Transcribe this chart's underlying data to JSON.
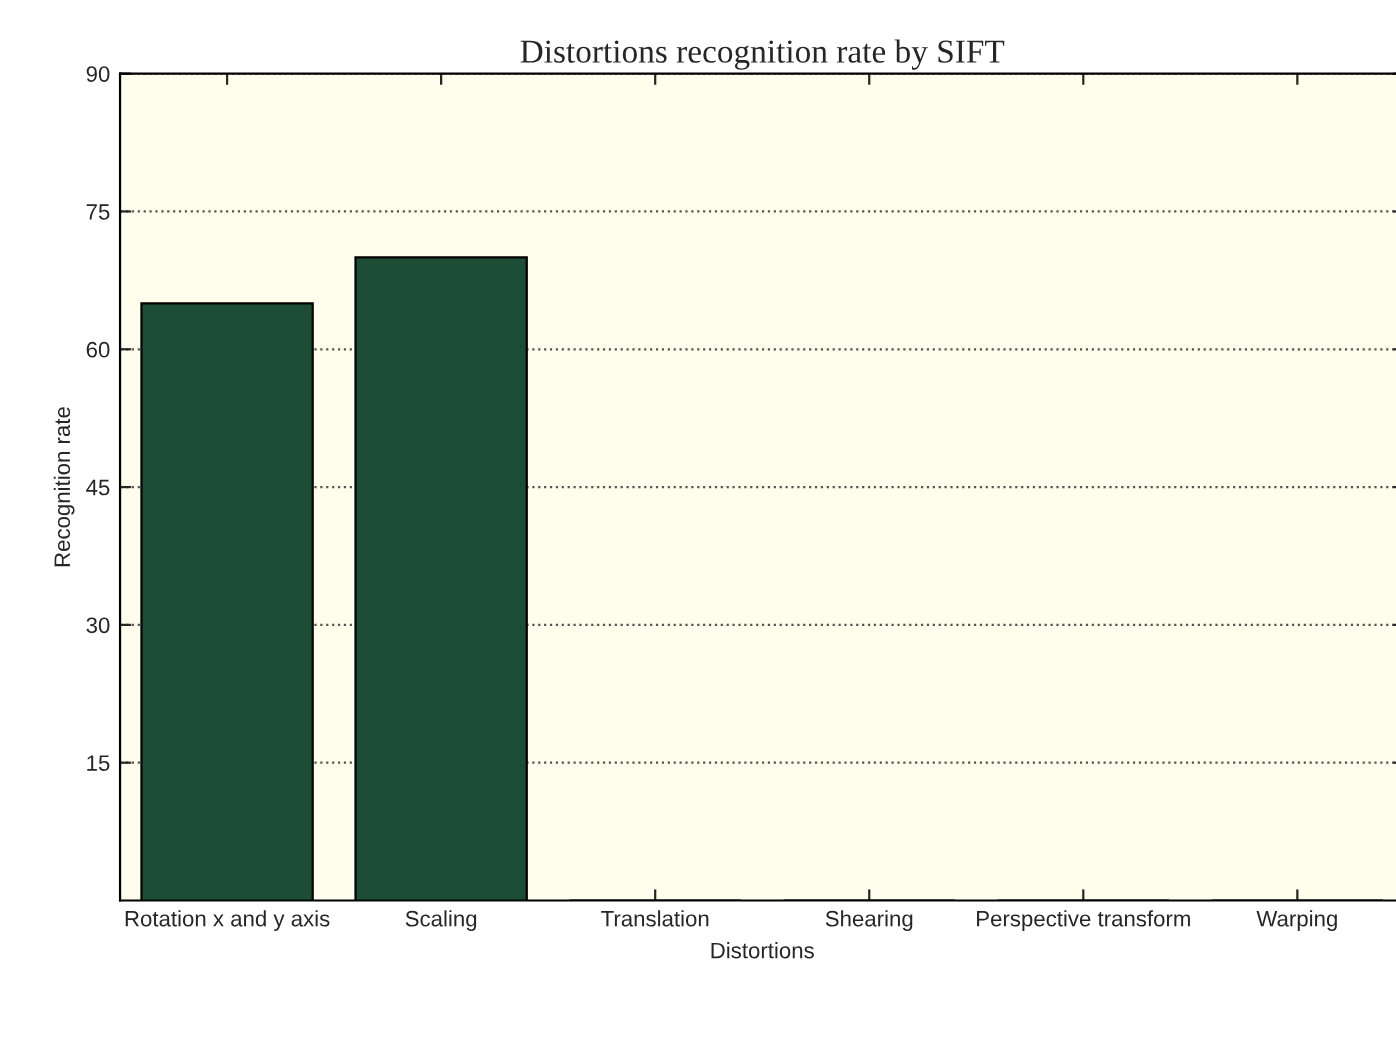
{
  "chart_data": {
    "type": "bar",
    "title": "Distortions recognition rate by SIFT",
    "xlabel": "Distortions",
    "ylabel": "Recognition rate",
    "categories": [
      "Rotation x and y axis",
      "Scaling",
      "Translation",
      "Shearing",
      "Perspective transform",
      "Warping"
    ],
    "values": [
      65,
      70,
      0,
      0,
      0,
      0
    ],
    "color": "#1e4d36",
    "ylim": [
      0,
      90
    ],
    "yticks": [
      15,
      30,
      45,
      60,
      75,
      90
    ],
    "grid": "y"
  }
}
